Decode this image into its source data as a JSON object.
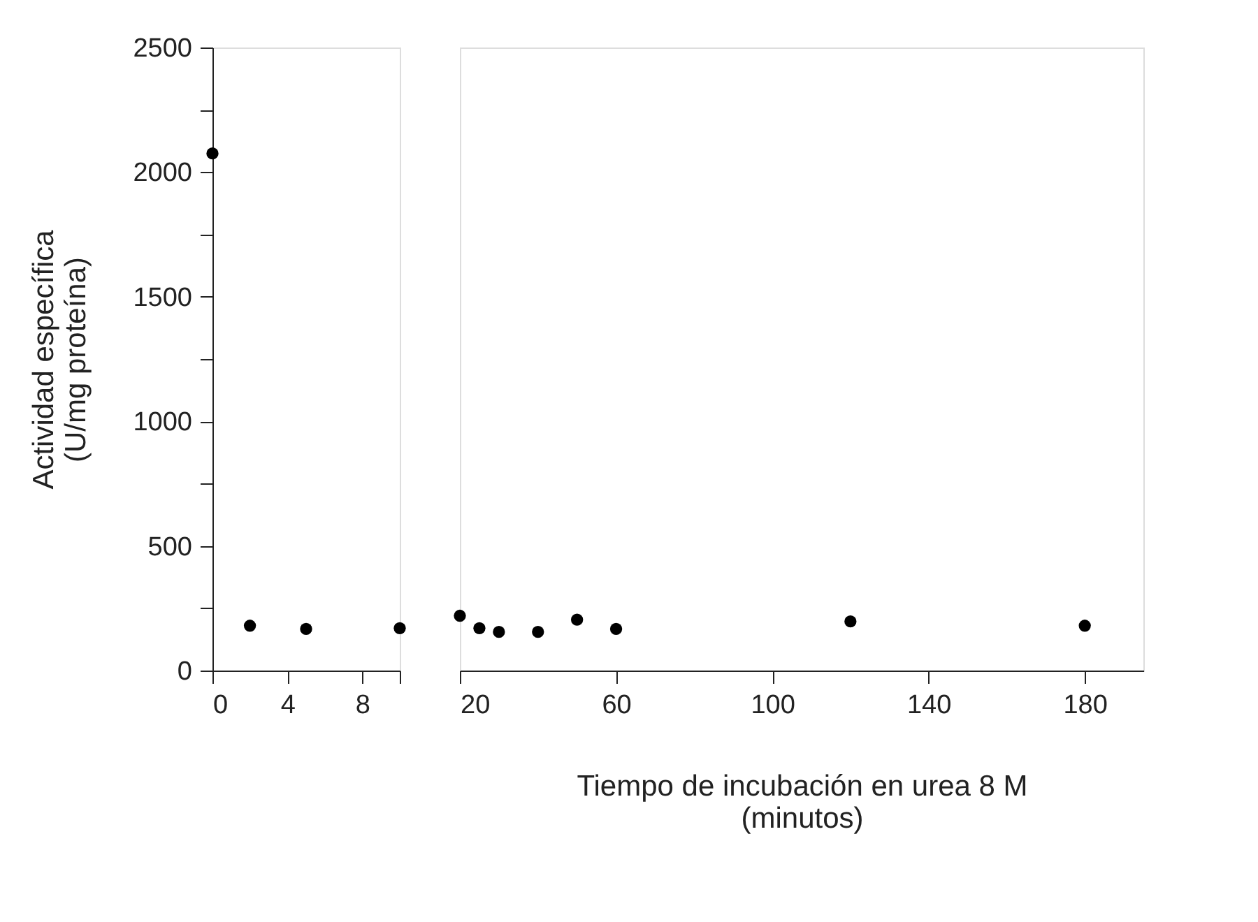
{
  "chart_data": [
    {
      "type": "scatter",
      "x": [
        0,
        2,
        5,
        10
      ],
      "series": [
        {
          "color": "#000000",
          "values": [
            2075,
            180,
            167,
            170
          ]
        }
      ],
      "xlim": [
        0,
        10
      ],
      "xticks": [
        0,
        4,
        8,
        {
          "value": 10,
          "label": null
        }
      ],
      "ylim": [
        0,
        2500
      ],
      "yticks": [
        0,
        {
          "value": 250,
          "label": null
        },
        500,
        {
          "value": 750,
          "label": null
        },
        1000,
        {
          "value": 1250,
          "label": null
        },
        1500,
        {
          "value": 1750,
          "label": null
        },
        2000,
        {
          "value": 2250,
          "label": null
        },
        2500
      ],
      "ylabel": "Actividad específica\n(U/mg proteína)",
      "marker": "circle",
      "grid": false,
      "legend": false
    },
    {
      "type": "scatter",
      "x": [
        20,
        25,
        30,
        40,
        50,
        60,
        120,
        180
      ],
      "series": [
        {
          "color": "#000000",
          "values": [
            220,
            170,
            155,
            155,
            204,
            167,
            197,
            180
          ]
        }
      ],
      "xlim": [
        20,
        195
      ],
      "xticks": [
        20,
        60,
        100,
        140,
        180
      ],
      "ylim": [
        0,
        2500
      ],
      "xlabel": "Tiempo de incubación en urea 8 M\n(minutos)",
      "tick_labels": "x",
      "marker": "circle",
      "grid": false,
      "legend": false
    }
  ]
}
